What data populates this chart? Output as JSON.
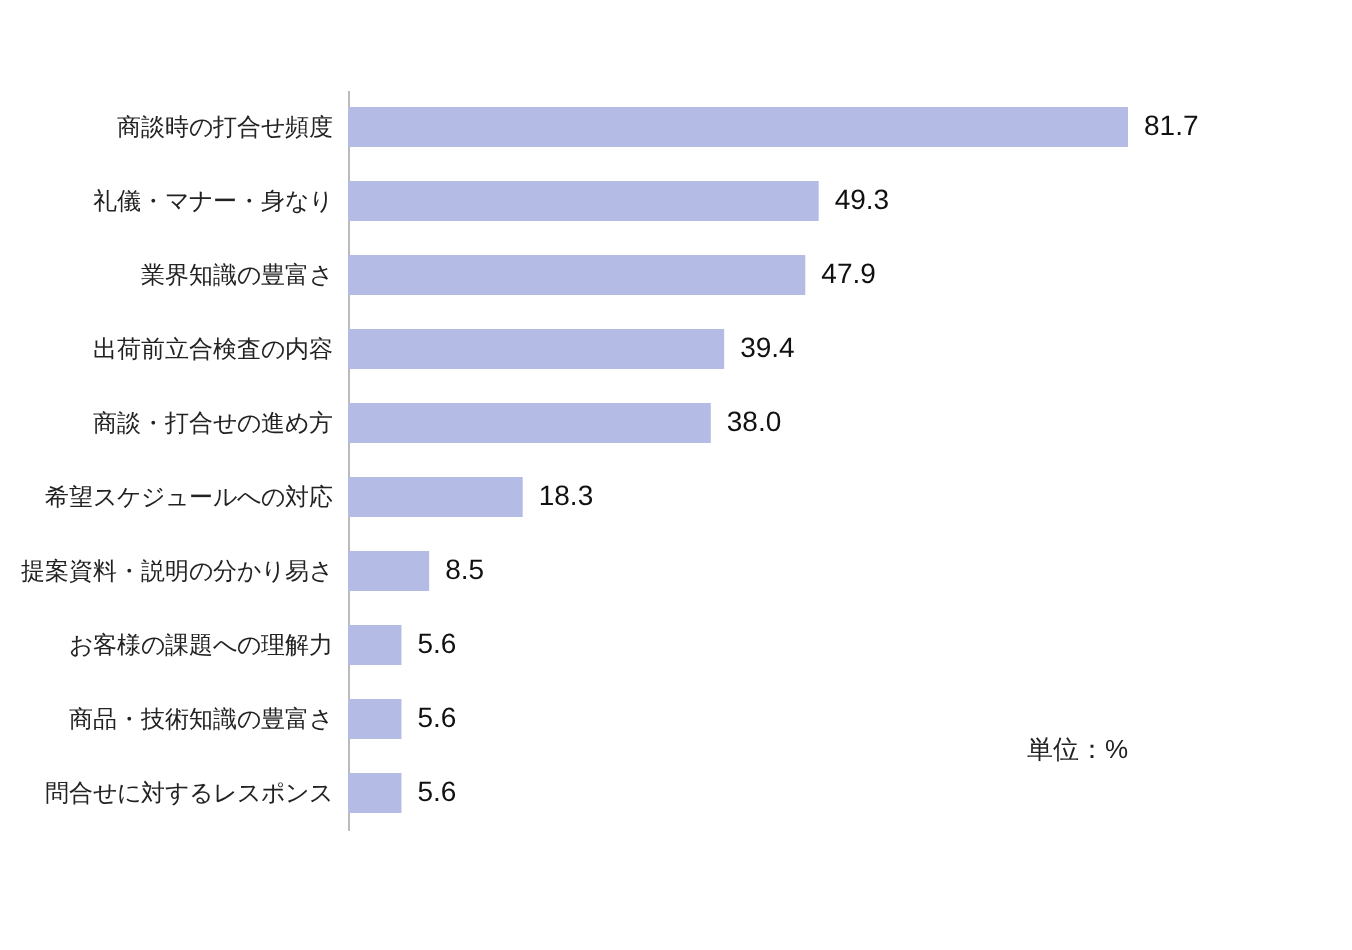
{
  "chart_data": {
    "type": "bar",
    "orientation": "horizontal",
    "categories": [
      "商談時の打合せ頻度",
      "礼儀・マナー・身なり",
      "業界知識の豊富さ",
      "出荷前立合検査の内容",
      "商談・打合せの進め方",
      "希望スケジュールへの対応",
      "提案資料・説明の分かり易さ",
      "お客様の課題への理解力",
      "商品・技術知識の豊富さ",
      "問合せに対するレスポンス"
    ],
    "values": [
      81.7,
      49.3,
      47.9,
      39.4,
      38.0,
      18.3,
      8.5,
      5.6,
      5.6,
      5.6
    ],
    "value_labels": [
      "81.7",
      "49.3",
      "47.9",
      "39.4",
      "38.0",
      "18.3",
      "8.5",
      "5.6",
      "5.6",
      "5.6"
    ],
    "color": "#b4bce6",
    "grid": false,
    "annotations": [
      "単位：%"
    ]
  }
}
